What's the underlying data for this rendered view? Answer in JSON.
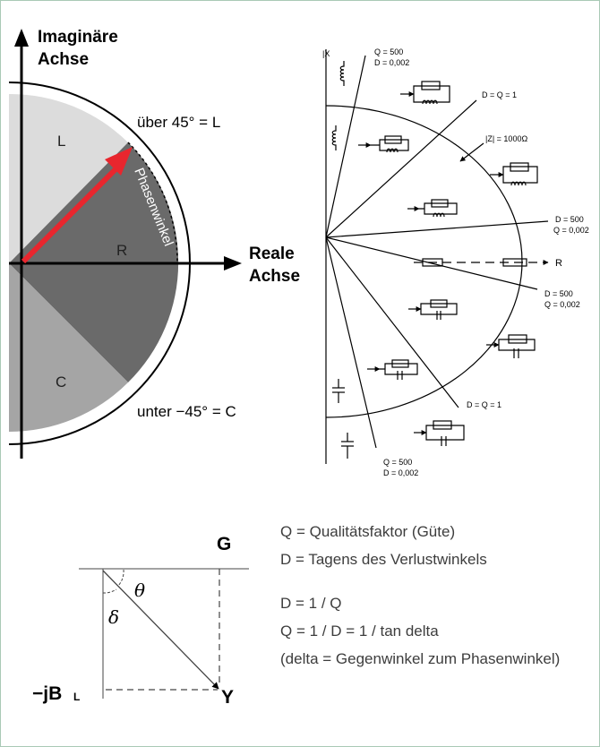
{
  "phase_diagram": {
    "imag_axis_label_line1": "Imaginäre",
    "imag_axis_label_line2": "Achse",
    "real_axis_label_line1": "Reale",
    "real_axis_label_line2": "Achse",
    "region_l": "L",
    "region_r": "R",
    "region_c": "C",
    "arc_label": "Phasenwinkel",
    "above_label": "über 45° = L",
    "below_label": "unter −45° = C",
    "colors": {
      "l_region": "#dcdcdc",
      "r_region": "#6a6a6a",
      "c_region": "#a5a5a5",
      "arrow": "#e8262e"
    }
  },
  "impedance_diagram": {
    "axis_x_label": "|X",
    "axis_r_label": "R",
    "z_label": "|Z| = 1000Ω",
    "q500_top_line1": "Q = 500",
    "q500_top_line2": "D = 0,002",
    "dq1_top": "D = Q = 1",
    "d500_upper_line1": "D = 500",
    "d500_upper_line2": "Q = 0,002",
    "d500_lower_line1": "D = 500",
    "d500_lower_line2": "Q = 0,002",
    "dq1_bottom": "D = Q = 1",
    "q500_bottom_line1": "Q = 500",
    "q500_bottom_line2": "D = 0,002"
  },
  "admittance_diagram": {
    "g_label": "G",
    "theta_label": "θ",
    "delta_label": "δ",
    "jb_label": "−jB",
    "jb_sub": "L",
    "y_label": "Y"
  },
  "legend": {
    "line1": "Q = Qualitätsfaktor (Güte)",
    "line2": "D = Tagens des Verlustwinkels",
    "line3": "D = 1 / Q",
    "line4": "Q = 1 / D = 1 / tan delta",
    "line5": "(delta = Gegenwinkel zum Phasenwinkel)"
  }
}
